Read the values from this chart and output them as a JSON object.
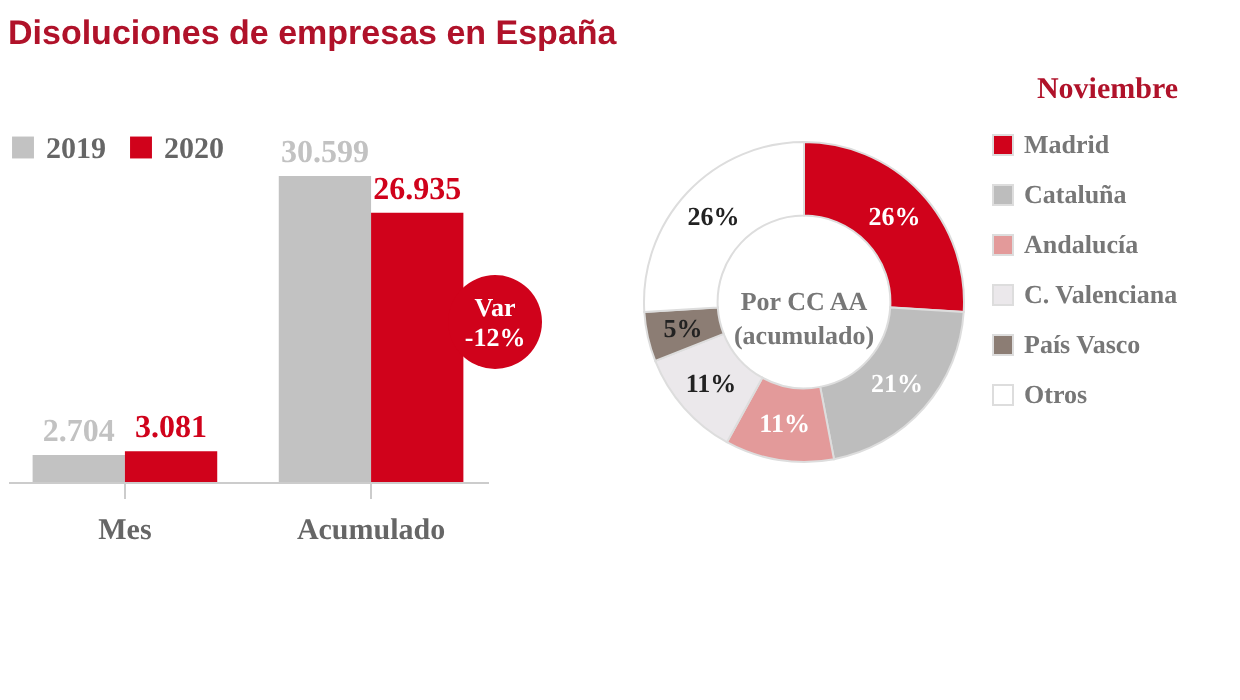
{
  "chart_data": [
    {
      "type": "bar",
      "title": "Disoluciones de empresas en España",
      "categories": [
        "Mes",
        "Acumulado"
      ],
      "series": [
        {
          "name": "2019",
          "color": "#c2c2c2",
          "values": [
            2704,
            30599
          ],
          "value_labels": [
            "2.704",
            "30.599"
          ]
        },
        {
          "name": "2020",
          "color": "#d0021b",
          "values": [
            3081,
            26935
          ],
          "value_labels": [
            "3.081",
            "26.935"
          ]
        }
      ],
      "annotations": [
        "Var -12%"
      ],
      "legend": "top left"
    },
    {
      "type": "donut",
      "title": "Noviembre",
      "categories": [
        "Madrid",
        "Cataluña",
        "Andalucía",
        "C. Valenciana",
        "País Vasco",
        "Otros"
      ],
      "values": [
        26,
        21,
        11,
        11,
        5,
        26
      ],
      "value_labels": [
        "26%",
        "21%",
        "11%",
        "11%",
        "5%",
        "26%"
      ],
      "colors": [
        "#d0021b",
        "#bdbdbd",
        "#e39a9a",
        "#ebe8eb",
        "#8c7d74",
        "#ffffff"
      ],
      "annotations": [
        "Por CC AA (acumulado)"
      ],
      "legend": "right"
    }
  ]
}
